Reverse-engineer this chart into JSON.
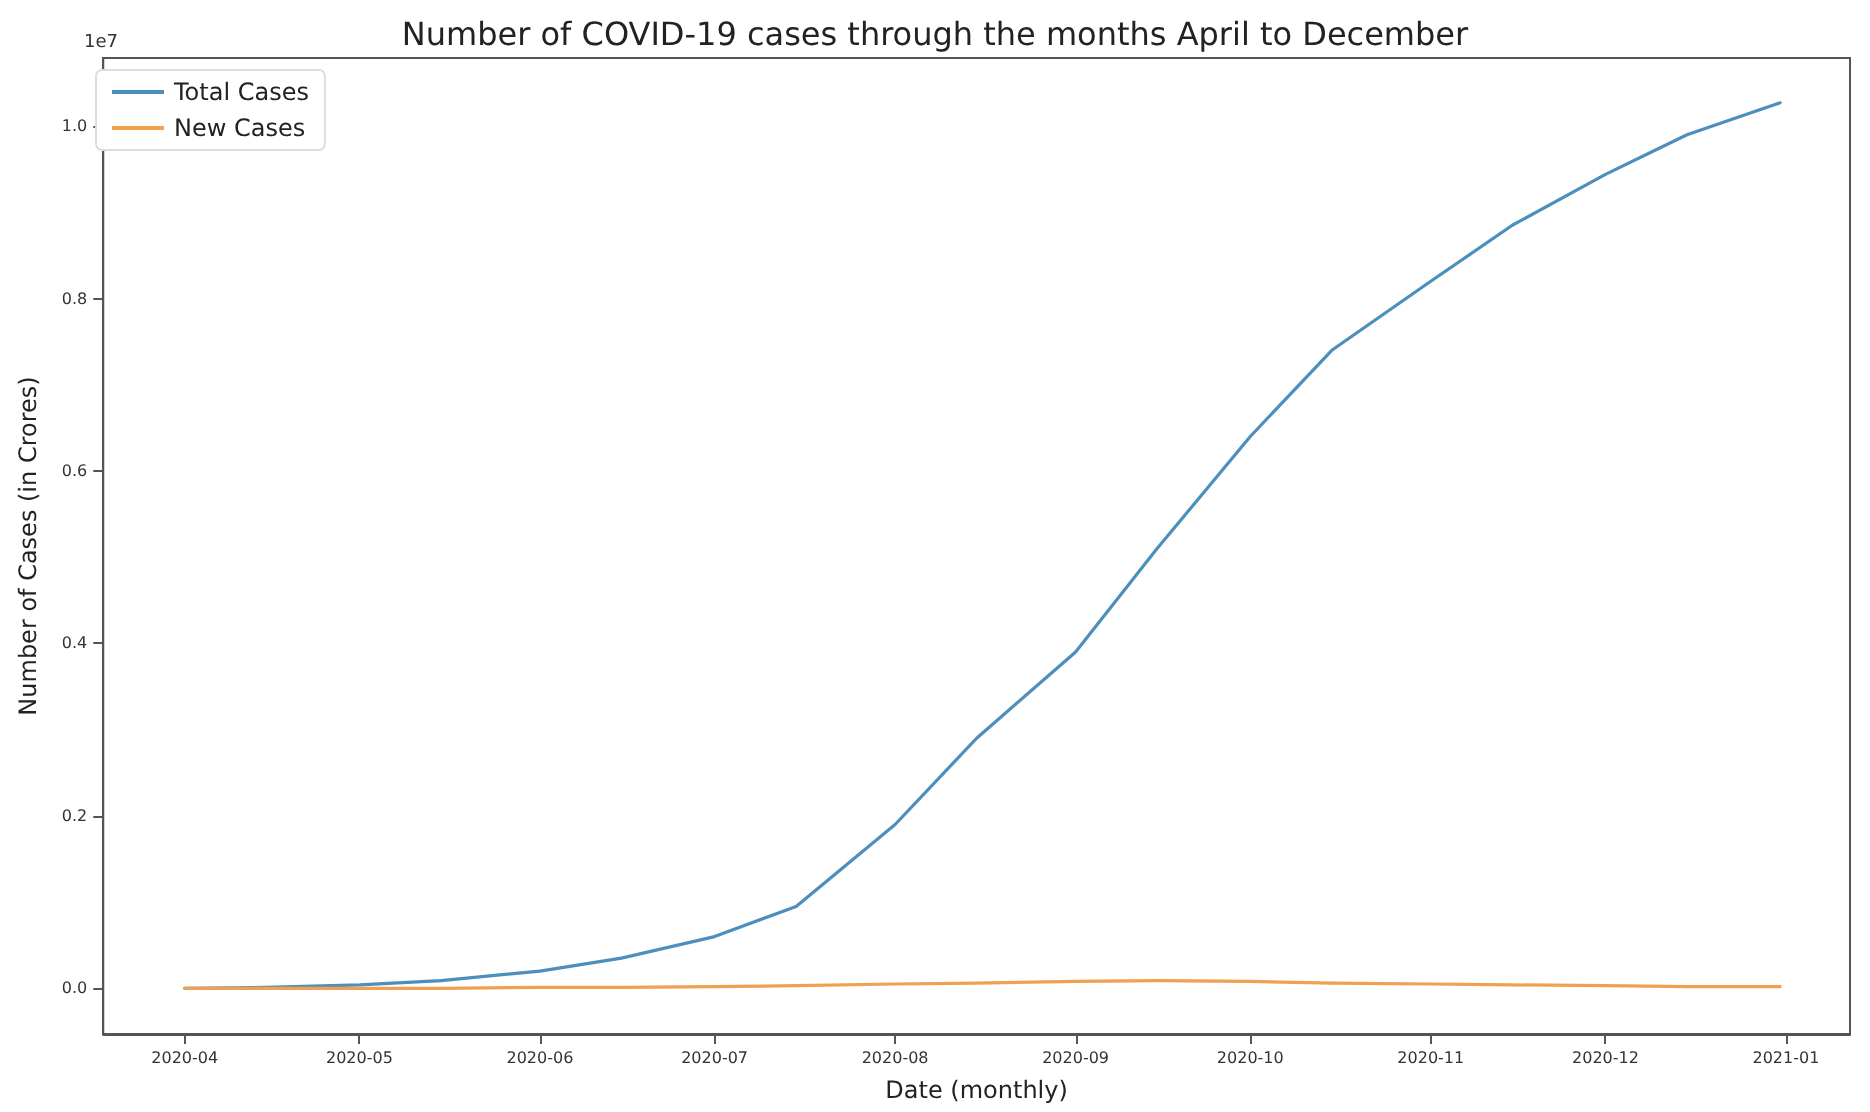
{
  "chart_data": {
    "type": "line",
    "title": "Number of COVID-19 cases through the months April to December",
    "xlabel": "Date (monthly)",
    "ylabel": "Number of Cases (in Crores)",
    "annotations": [
      "1e7"
    ],
    "x": [
      "2020-04-01",
      "2020-04-15",
      "2020-05-01",
      "2020-05-15",
      "2020-06-01",
      "2020-06-15",
      "2020-07-01",
      "2020-07-15",
      "2020-08-01",
      "2020-08-15",
      "2020-09-01",
      "2020-09-15",
      "2020-10-01",
      "2020-10-15",
      "2020-11-01",
      "2020-11-15",
      "2020-12-01",
      "2020-12-15",
      "2020-12-31"
    ],
    "series": [
      {
        "name": "Total Cases",
        "color": "#4c8fbd",
        "values": [
          0.0,
          0.001,
          0.004,
          0.009,
          0.02,
          0.035,
          0.06,
          0.095,
          0.19,
          0.29,
          0.39,
          0.51,
          0.64,
          0.74,
          0.82,
          0.885,
          0.944,
          0.99,
          1.027
        ]
      },
      {
        "name": "New Cases",
        "color": "#f0a050",
        "values": [
          0.0,
          0.0,
          0.0,
          0.0,
          0.001,
          0.001,
          0.002,
          0.003,
          0.005,
          0.006,
          0.008,
          0.009,
          0.008,
          0.006,
          0.005,
          0.004,
          0.003,
          0.002,
          0.002
        ]
      }
    ],
    "xlim": [
      "2020-03-18",
      "2021-01-12"
    ],
    "xticks": [
      "2020-04",
      "2020-05",
      "2020-06",
      "2020-07",
      "2020-08",
      "2020-09",
      "2020-10",
      "2020-11",
      "2020-12",
      "2021-01"
    ],
    "ylim": [
      -0.053,
      1.079
    ],
    "yticks": [
      {
        "value": 0,
        "label": "0.0"
      },
      {
        "value": 0.2,
        "label": "0.2"
      },
      {
        "value": 0.4,
        "label": "0.4"
      },
      {
        "value": 0.6,
        "label": "0.6"
      },
      {
        "value": 0.8,
        "label": "0.8"
      },
      {
        "value": 1.0,
        "label": "1.0"
      }
    ],
    "grid": false,
    "legend": "top left",
    "line_style": "solid"
  }
}
